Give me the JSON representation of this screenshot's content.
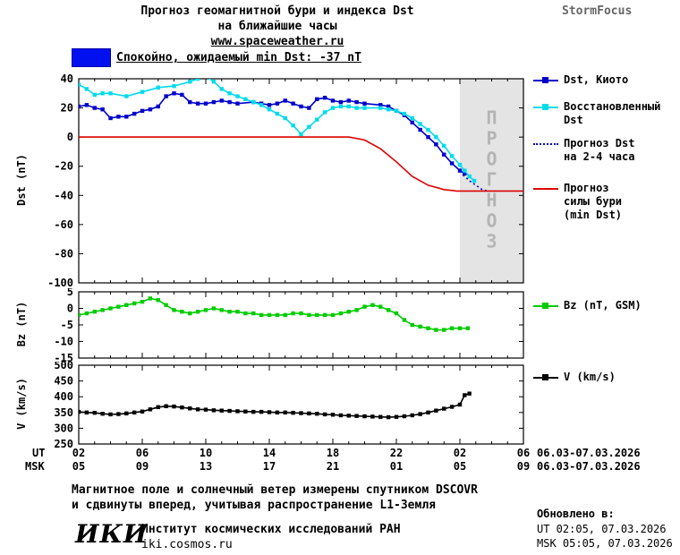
{
  "header": {
    "title_line1": "Прогноз геомагнитной бури и индекса Dst",
    "title_line2": "на ближайшие часы",
    "site": "www.spaceweather.ru",
    "brand": "StormFocus"
  },
  "status": {
    "label": "Спокойно, ожидаемый min Dst: -37 nT",
    "box_color": "#0010ee"
  },
  "forecast_band_label": "ПРОГНОЗ",
  "legend": {
    "dst_kyoto": "Dst, Киото",
    "restored_line1": "Восстановленный",
    "restored_line2": "Dst",
    "forecast_line1": "Прогноз Dst",
    "forecast_line2": "на 2-4 часа",
    "storm_line1": "Прогноз",
    "storm_line2": "силы бури",
    "storm_line3": "(min Dst)",
    "bz": "Bz (nT, GSM)",
    "v": "V (km/s)"
  },
  "xaxis": {
    "ut_label": "UT",
    "msk_label": "MSK",
    "ut_ticks": [
      "02",
      "06",
      "10",
      "14",
      "18",
      "22",
      "02",
      "06"
    ],
    "msk_ticks": [
      "05",
      "09",
      "13",
      "17",
      "21",
      "01",
      "05",
      "09"
    ],
    "ut_date": "06.03-07.03.2026",
    "msk_date": "06.03-07.03.2026"
  },
  "footnote": {
    "line1": "Магнитное поле и солнечный ветер измерены спутником DSCOVR",
    "line2": "и сдвинуты вперед, учитывая распространение L1-Земля"
  },
  "footer": {
    "logo": "ИКИ",
    "institute": "Институт космических исследований РАН",
    "site": "iki.cosmos.ru",
    "updated_label": "Обновлено в:",
    "updated_ut": "UT  02:05, 07.03.2026",
    "updated_msk": "MSK 05:05, 07.03.2026"
  },
  "chart_data": [
    {
      "type": "line",
      "title": "Прогноз геомагнитной бури и индекса Dst на ближайшие часы",
      "ylabel": "Dst (nT)",
      "ylim": [
        -100,
        40
      ],
      "yticks": [
        40,
        20,
        0,
        -20,
        -40,
        -60,
        -80,
        -100
      ],
      "xlim": [
        2,
        30
      ],
      "xticks": [
        2,
        6,
        10,
        14,
        18,
        22,
        26,
        30
      ],
      "forecast_band": [
        26,
        30
      ],
      "series": [
        {
          "name": "Dst, Киото",
          "color": "#0000cc",
          "marker": "square",
          "points": [
            [
              2,
              21
            ],
            [
              2.5,
              22
            ],
            [
              3,
              20
            ],
            [
              3.5,
              19
            ],
            [
              4,
              13
            ],
            [
              4.5,
              14
            ],
            [
              5,
              14
            ],
            [
              5.5,
              16
            ],
            [
              6,
              18
            ],
            [
              6.5,
              19
            ],
            [
              7,
              21
            ],
            [
              7.5,
              28
            ],
            [
              8,
              30
            ],
            [
              8.5,
              29
            ],
            [
              9,
              24
            ],
            [
              9.5,
              23
            ],
            [
              10,
              23
            ],
            [
              10.5,
              24
            ],
            [
              11,
              25
            ],
            [
              11.5,
              24
            ],
            [
              12,
              23
            ],
            [
              13,
              24
            ],
            [
              13.5,
              23
            ],
            [
              14,
              22
            ],
            [
              14.5,
              23
            ],
            [
              15,
              25
            ],
            [
              15.5,
              23
            ],
            [
              16,
              21
            ],
            [
              16.5,
              20
            ],
            [
              17,
              26
            ],
            [
              17.5,
              27
            ],
            [
              18,
              25
            ],
            [
              18.5,
              24
            ],
            [
              19,
              25
            ],
            [
              19.5,
              24
            ],
            [
              20,
              23
            ],
            [
              21,
              22
            ],
            [
              21.5,
              21
            ],
            [
              22,
              18
            ],
            [
              22.5,
              15
            ],
            [
              23,
              10
            ],
            [
              23.5,
              5
            ],
            [
              24,
              0
            ],
            [
              24.5,
              -5
            ],
            [
              25,
              -12
            ],
            [
              25.5,
              -18
            ],
            [
              26,
              -23
            ],
            [
              26.3,
              -25
            ]
          ]
        },
        {
          "name": "Восстановленный Dst",
          "color": "#00dcec",
          "marker": "square",
          "points": [
            [
              2,
              36
            ],
            [
              2.5,
              33
            ],
            [
              3,
              29
            ],
            [
              3.5,
              30
            ],
            [
              4,
              30
            ],
            [
              5,
              28
            ],
            [
              6,
              31
            ],
            [
              7,
              34
            ],
            [
              8,
              35
            ],
            [
              9,
              38
            ],
            [
              9.5,
              40
            ],
            [
              10,
              42
            ],
            [
              10.5,
              38
            ],
            [
              11,
              33
            ],
            [
              11.5,
              30
            ],
            [
              12,
              28
            ],
            [
              12.5,
              26
            ],
            [
              13,
              24
            ],
            [
              13.5,
              22
            ],
            [
              14,
              19
            ],
            [
              14.5,
              16
            ],
            [
              15,
              13
            ],
            [
              15.5,
              8
            ],
            [
              16,
              2
            ],
            [
              16.5,
              7
            ],
            [
              17,
              12
            ],
            [
              17.5,
              17
            ],
            [
              18,
              20
            ],
            [
              18.5,
              21
            ],
            [
              19,
              21
            ],
            [
              19.5,
              20
            ],
            [
              20,
              20
            ],
            [
              21,
              20
            ],
            [
              21.5,
              19
            ],
            [
              22,
              18
            ],
            [
              22.5,
              16
            ],
            [
              23,
              13
            ],
            [
              23.5,
              9
            ],
            [
              24,
              5
            ],
            [
              24.5,
              0
            ],
            [
              25,
              -6
            ],
            [
              25.5,
              -13
            ],
            [
              26,
              -19
            ],
            [
              26.3,
              -23
            ],
            [
              26.6,
              -27
            ],
            [
              26.9,
              -30
            ]
          ]
        },
        {
          "name": "Прогноз Dst на 2-4 часа",
          "color": "#0000cc",
          "dash": "2,3",
          "points": [
            [
              26.2,
              -26
            ],
            [
              26.6,
              -30
            ],
            [
              27.0,
              -33
            ],
            [
              27.4,
              -36
            ],
            [
              27.8,
              -37
            ]
          ]
        },
        {
          "name": "Прогноз силы бури (min Dst)",
          "color": "#dc0000",
          "points": [
            [
              2,
              0
            ],
            [
              19,
              0
            ],
            [
              20,
              -2
            ],
            [
              21,
              -8
            ],
            [
              22,
              -17
            ],
            [
              23,
              -27
            ],
            [
              24,
              -33
            ],
            [
              25,
              -36
            ],
            [
              25.8,
              -37
            ],
            [
              30,
              -37
            ]
          ]
        }
      ]
    },
    {
      "type": "line",
      "ylabel": "Bz (nT)",
      "ylim": [
        -15,
        5
      ],
      "yticks": [
        5,
        0,
        -5,
        -10,
        -15
      ],
      "xlim": [
        2,
        30
      ],
      "xticks": [
        2,
        6,
        10,
        14,
        18,
        22,
        26,
        30
      ],
      "series": [
        {
          "name": "Bz (nT, GSM)",
          "color": "#00cc00",
          "marker": "square",
          "points": [
            [
              2,
              -2
            ],
            [
              2.5,
              -1.5
            ],
            [
              3,
              -1
            ],
            [
              3.5,
              -0.5
            ],
            [
              4,
              0
            ],
            [
              4.5,
              0.5
            ],
            [
              5,
              1
            ],
            [
              5.5,
              1.5
            ],
            [
              6,
              2
            ],
            [
              6.5,
              3
            ],
            [
              7,
              2.5
            ],
            [
              7.5,
              1
            ],
            [
              8,
              -0.5
            ],
            [
              8.5,
              -1
            ],
            [
              9,
              -1.5
            ],
            [
              9.5,
              -1
            ],
            [
              10,
              -0.5
            ],
            [
              10.5,
              0
            ],
            [
              11,
              -0.5
            ],
            [
              11.5,
              -1
            ],
            [
              12,
              -1
            ],
            [
              12.5,
              -1.5
            ],
            [
              13,
              -1.5
            ],
            [
              13.5,
              -2
            ],
            [
              14,
              -2
            ],
            [
              14.5,
              -2
            ],
            [
              15,
              -2
            ],
            [
              15.5,
              -1.5
            ],
            [
              16,
              -1.5
            ],
            [
              16.5,
              -2
            ],
            [
              17,
              -2
            ],
            [
              17.5,
              -2
            ],
            [
              18,
              -2
            ],
            [
              18.5,
              -1.5
            ],
            [
              19,
              -1
            ],
            [
              19.5,
              -0.5
            ],
            [
              20,
              0.5
            ],
            [
              20.5,
              1
            ],
            [
              21,
              0.5
            ],
            [
              21.5,
              -0.5
            ],
            [
              22,
              -1.5
            ],
            [
              22.5,
              -3.5
            ],
            [
              23,
              -5
            ],
            [
              23.5,
              -5.5
            ],
            [
              24,
              -6
            ],
            [
              24.5,
              -6.5
            ],
            [
              25,
              -6.5
            ],
            [
              25.5,
              -6
            ],
            [
              26,
              -6
            ],
            [
              26.5,
              -6
            ]
          ]
        }
      ]
    },
    {
      "type": "line",
      "ylabel": "V (km/s)",
      "ylim": [
        250,
        500
      ],
      "yticks": [
        500,
        450,
        400,
        350,
        300,
        250
      ],
      "xlim": [
        2,
        30
      ],
      "xticks": [
        2,
        6,
        10,
        14,
        18,
        22,
        26,
        30
      ],
      "series": [
        {
          "name": "V (km/s)",
          "color": "#000000",
          "marker": "square",
          "points": [
            [
              2,
              352
            ],
            [
              2.5,
              350
            ],
            [
              3,
              349
            ],
            [
              3.5,
              346
            ],
            [
              4,
              344
            ],
            [
              4.5,
              345
            ],
            [
              5,
              347
            ],
            [
              5.5,
              350
            ],
            [
              6,
              353
            ],
            [
              6.5,
              360
            ],
            [
              7,
              367
            ],
            [
              7.5,
              370
            ],
            [
              8,
              369
            ],
            [
              8.5,
              366
            ],
            [
              9,
              363
            ],
            [
              9.5,
              360
            ],
            [
              10,
              359
            ],
            [
              10.5,
              357
            ],
            [
              11,
              356
            ],
            [
              11.5,
              355
            ],
            [
              12,
              354
            ],
            [
              12.5,
              353
            ],
            [
              13,
              352
            ],
            [
              13.5,
              352
            ],
            [
              14,
              351
            ],
            [
              14.5,
              350
            ],
            [
              15,
              350
            ],
            [
              15.5,
              349
            ],
            [
              16,
              348
            ],
            [
              16.5,
              347
            ],
            [
              17,
              346
            ],
            [
              17.5,
              344
            ],
            [
              18,
              343
            ],
            [
              18.5,
              341
            ],
            [
              19,
              340
            ],
            [
              19.5,
              339
            ],
            [
              20,
              338
            ],
            [
              20.5,
              337
            ],
            [
              21,
              336
            ],
            [
              21.5,
              335
            ],
            [
              22,
              336
            ],
            [
              22.5,
              338
            ],
            [
              23,
              341
            ],
            [
              23.5,
              345
            ],
            [
              24,
              350
            ],
            [
              24.5,
              356
            ],
            [
              25,
              362
            ],
            [
              25.5,
              368
            ],
            [
              26,
              375
            ],
            [
              26.3,
              405
            ],
            [
              26.6,
              410
            ]
          ]
        }
      ]
    }
  ]
}
